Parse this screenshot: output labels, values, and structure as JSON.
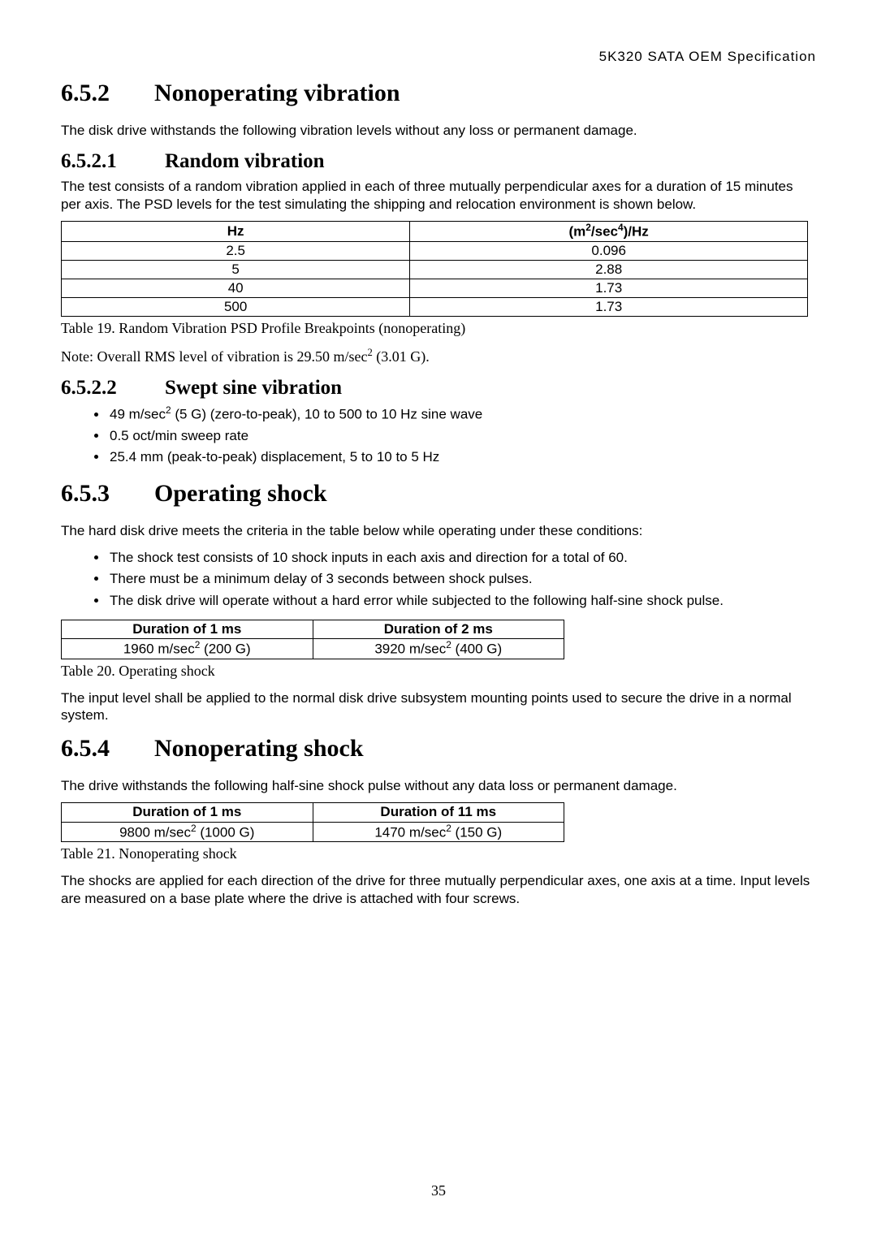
{
  "header": {
    "doc_title": "5K320 SATA OEM Specification"
  },
  "s652": {
    "num": "6.5.2",
    "title": "Nonoperating vibration",
    "intro": "The disk drive withstands the following vibration levels without any loss or permanent damage."
  },
  "s6521": {
    "num": "6.5.2.1",
    "title": "Random vibration",
    "intro": "The test consists of a random vibration applied in each of three mutually perpendicular axes for a duration of 15 minutes per axis. The PSD levels for the test simulating the shipping and relocation environment is shown below.",
    "table": {
      "col1_header": "Hz",
      "col2_header_html": "(m<sup>2</sup>/sec<sup>4</sup>)/Hz",
      "rows": [
        {
          "hz": "2.5",
          "psd": "0.096"
        },
        {
          "hz": "5",
          "psd": "2.88"
        },
        {
          "hz": "40",
          "psd": "1.73"
        },
        {
          "hz": "500",
          "psd": "1.73"
        }
      ]
    },
    "caption": "Table 19. Random Vibration PSD Profile Breakpoints (nonoperating)",
    "note_html": "Note: Overall RMS level of vibration is 29.50 m/sec<sup>2</sup> (3.01 G)."
  },
  "s6522": {
    "num": "6.5.2.2",
    "title": "Swept sine vibration",
    "bullets": [
      "49 m/sec<sup>2</sup> (5 G) (zero-to-peak), 10 to 500 to 10 Hz sine wave",
      "0.5 oct/min sweep rate",
      "25.4 mm (peak-to-peak) displacement, 5 to 10 to 5 Hz"
    ]
  },
  "s653": {
    "num": "6.5.3",
    "title": "Operating shock",
    "intro": "The hard disk drive meets the criteria in the table below while operating under these conditions:",
    "bullets": [
      "The shock test consists of 10 shock inputs in each axis and direction for a total of 60.",
      "There must be a minimum delay of 3 seconds between shock pulses.",
      "The disk drive will operate without a hard error while subjected to the following half-sine shock pulse."
    ],
    "table": {
      "h1": "Duration of 1 ms",
      "h2": "Duration of 2 ms",
      "c1_html": "1960 m/sec<sup>2</sup> (200 G)",
      "c2_html": "3920 m/sec<sup>2</sup> (400 G)"
    },
    "caption": "Table 20. Operating shock",
    "outro": "The input level shall be applied to the normal disk drive subsystem mounting points used to secure the drive in a normal system."
  },
  "s654": {
    "num": "6.5.4",
    "title": "Nonoperating shock",
    "intro": "The drive withstands the following half-sine shock pulse without any data loss or permanent damage.",
    "table": {
      "h1": "Duration of 1 ms",
      "h2": "Duration of 11 ms",
      "c1_html": "9800 m/sec<sup>2</sup> (1000 G)",
      "c2_html": "1470 m/sec<sup>2</sup> (150 G)"
    },
    "caption": "Table 21. Nonoperating shock",
    "outro": "The shocks are applied for each direction of the drive for three mutually perpendicular axes, one axis at a time.   Input levels are measured on a base plate where the drive is attached with four screws."
  },
  "footer": {
    "page_number": "35"
  }
}
